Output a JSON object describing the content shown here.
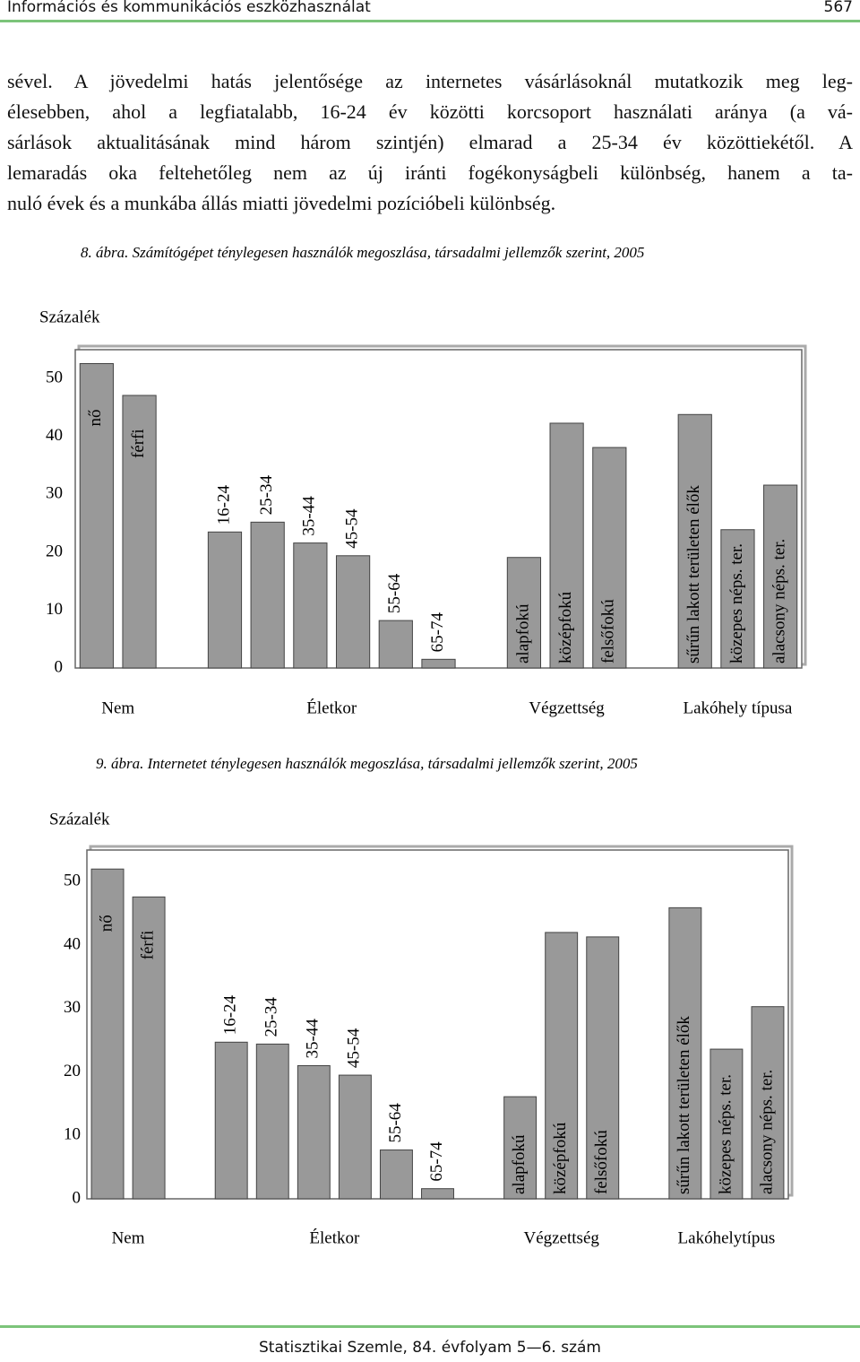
{
  "header": {
    "title": "Információs és kommunikációs eszközhasználat",
    "page": "567"
  },
  "body": {
    "lines": [
      "sével. A jövedelmi hatás jelentősége az internetes vásárlásoknál mutatkozik meg leg-",
      "élesebben, ahol a legfiatalabb, 16-24 év közötti korcsoport használati aránya (a vá-",
      "sárlások aktualitásának mind három szintjén) elmarad a 25-34 év közöttiekétől. A",
      "lemaradás oka feltehetőleg nem az új iránti fogékonyságbeli különbség, hanem a ta-",
      "nuló évek és a munkába állás miatti jövedelmi pozícióbeli különbség."
    ]
  },
  "chart_data": [
    {
      "type": "bar",
      "title": "8. ábra. Számítógépet ténylegesen használók megoszlása, társadalmi jellemzők szerint, 2005",
      "y_label": "Százalék",
      "color": "#999999",
      "ylim": [
        0,
        55
      ],
      "yticks": [
        0,
        10,
        20,
        30,
        40,
        50
      ],
      "groups": [
        {
          "name": "Nem",
          "categories": [
            "nő",
            "férfi"
          ],
          "values": [
            52.6,
            47.1
          ]
        },
        {
          "name": "Életkor",
          "categories": [
            "16-24",
            "25-34",
            "35-44",
            "45-54",
            "55-64",
            "65-74"
          ],
          "values": [
            23.5,
            25.2,
            21.6,
            19.4,
            8.2,
            1.5
          ]
        },
        {
          "name": "Végzettség",
          "categories": [
            "alapfokú",
            "középfokú",
            "felsőfokú"
          ],
          "values": [
            19.1,
            42.3,
            38.1
          ]
        },
        {
          "name": "Lakóhely típusa",
          "categories": [
            "sűrűn lakott területen élők",
            "közepes néps. ter.",
            "alacsony néps. ter."
          ],
          "values": [
            43.8,
            23.9,
            31.6
          ]
        }
      ]
    },
    {
      "type": "bar",
      "title": "9. ábra. Internetet ténylegesen használók megoszlása, társadalmi jellemzők szerint, 2005",
      "y_label": "Százalék",
      "color": "#999999",
      "ylim": [
        0,
        55
      ],
      "yticks": [
        0,
        10,
        20,
        30,
        40,
        50
      ],
      "groups": [
        {
          "name": "Nem",
          "categories": [
            "nő",
            "férfi"
          ],
          "values": [
            52.0,
            47.6
          ]
        },
        {
          "name": "Életkor",
          "categories": [
            "16-24",
            "25-34",
            "35-44",
            "45-54",
            "55-64",
            "65-74"
          ],
          "values": [
            24.7,
            24.4,
            21.0,
            19.5,
            7.7,
            1.6
          ]
        },
        {
          "name": "Végzettség",
          "categories": [
            "alapfokú",
            "középfokú",
            "felsőfokú"
          ],
          "values": [
            16.1,
            42.0,
            41.3
          ]
        },
        {
          "name": "Lakóhelytípus",
          "categories": [
            "sűrűn lakott területen élők",
            "közepes néps. ter.",
            "alacsony néps. ter."
          ],
          "values": [
            45.9,
            23.6,
            30.3
          ]
        }
      ]
    }
  ],
  "footer": {
    "text": "Statisztikai Szemle, 84. évfolyam 5—6. szám"
  }
}
